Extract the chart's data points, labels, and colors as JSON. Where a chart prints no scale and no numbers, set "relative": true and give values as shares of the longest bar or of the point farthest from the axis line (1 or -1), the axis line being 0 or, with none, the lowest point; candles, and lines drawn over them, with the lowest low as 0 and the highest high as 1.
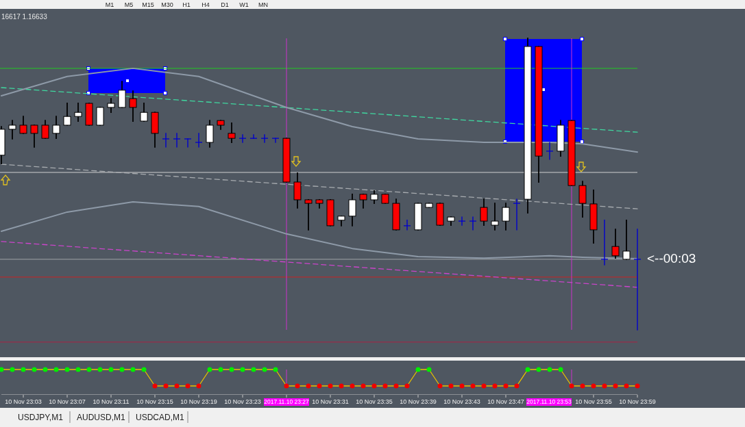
{
  "chart_data": [
    {
      "type": "other",
      "annotations": [
        "M1",
        "M5",
        "M15",
        "M30",
        "H1",
        "H4",
        "D1",
        "W1",
        "MN"
      ]
    },
    {
      "type": "candlestick",
      "relative": true,
      "tick_labels": false,
      "xlim": [
        "2017-11-10T23:01",
        "2017-11-10T23:59"
      ],
      "x": [
        "2017-11-10T23:01",
        "2017-11-10T23:02",
        "2017-11-10T23:03",
        "2017-11-10T23:04",
        "2017-11-10T23:05",
        "2017-11-10T23:06",
        "2017-11-10T23:07",
        "2017-11-10T23:08",
        "2017-11-10T23:09",
        "2017-11-10T23:10",
        "2017-11-10T23:11",
        "2017-11-10T23:12",
        "2017-11-10T23:13",
        "2017-11-10T23:14",
        "2017-11-10T23:15",
        "2017-11-10T23:16",
        "2017-11-10T23:17",
        "2017-11-10T23:18",
        "2017-11-10T23:19",
        "2017-11-10T23:20",
        "2017-11-10T23:21",
        "2017-11-10T23:22",
        "2017-11-10T23:23",
        "2017-11-10T23:24",
        "2017-11-10T23:25",
        "2017-11-10T23:26",
        "2017-11-10T23:27",
        "2017-11-10T23:28",
        "2017-11-10T23:29",
        "2017-11-10T23:30",
        "2017-11-10T23:31",
        "2017-11-10T23:32",
        "2017-11-10T23:33",
        "2017-11-10T23:34",
        "2017-11-10T23:35",
        "2017-11-10T23:36",
        "2017-11-10T23:37",
        "2017-11-10T23:38",
        "2017-11-10T23:39",
        "2017-11-10T23:40",
        "2017-11-10T23:41",
        "2017-11-10T23:42",
        "2017-11-10T23:43",
        "2017-11-10T23:44",
        "2017-11-10T23:45",
        "2017-11-10T23:46",
        "2017-11-10T23:47",
        "2017-11-10T23:48",
        "2017-11-10T23:49",
        "2017-11-10T23:50",
        "2017-11-10T23:51",
        "2017-11-10T23:52",
        "2017-11-10T23:53",
        "2017-11-10T23:54",
        "2017-11-10T23:55",
        "2017-11-10T23:56",
        "2017-11-10T23:57",
        "2017-11-10T23:58",
        "2017-11-10T23:59"
      ],
      "ohlc": [
        [
          0.599,
          0.697,
          0.57,
          0.688
        ],
        [
          0.688,
          0.718,
          0.655,
          0.702
        ],
        [
          0.702,
          0.732,
          0.674,
          0.674
        ],
        [
          0.702,
          0.702,
          0.627,
          0.674
        ],
        [
          0.702,
          0.718,
          0.657,
          0.657
        ],
        [
          0.674,
          0.732,
          0.657,
          0.702
        ],
        [
          0.702,
          0.777,
          0.702,
          0.732
        ],
        [
          0.732,
          0.777,
          0.716,
          0.746
        ],
        [
          0.777,
          0.777,
          0.702,
          0.702
        ],
        [
          0.702,
          0.763,
          0.702,
          0.763
        ],
        [
          0.763,
          0.793,
          0.746,
          0.777
        ],
        [
          0.763,
          0.852,
          0.763,
          0.822
        ],
        [
          0.793,
          0.819,
          0.716,
          0.763
        ],
        [
          0.716,
          0.777,
          0.716,
          0.746
        ],
        [
          0.746,
          0.746,
          0.627,
          0.674
        ],
        [
          0.655,
          0.674,
          0.627,
          0.655
        ],
        [
          0.655,
          0.674,
          0.627,
          0.655
        ],
        [
          0.655,
          0.655,
          0.627,
          0.655
        ],
        [
          0.643,
          0.674,
          0.627,
          0.643
        ],
        [
          0.643,
          0.718,
          0.627,
          0.702
        ],
        [
          0.718,
          0.718,
          0.688,
          0.702
        ],
        [
          0.674,
          0.709,
          0.643,
          0.657
        ],
        [
          0.657,
          0.669,
          0.643,
          0.657
        ],
        [
          0.657,
          0.669,
          0.657,
          0.657
        ],
        [
          0.657,
          0.669,
          0.643,
          0.657
        ],
        [
          0.657,
          0.657,
          0.643,
          0.657
        ],
        [
          0.657,
          0.657,
          0.507,
          0.507
        ],
        [
          0.507,
          0.538,
          0.418,
          0.446
        ],
        [
          0.446,
          0.446,
          0.343,
          0.434
        ],
        [
          0.446,
          0.446,
          0.418,
          0.434
        ],
        [
          0.446,
          0.446,
          0.357,
          0.357
        ],
        [
          0.376,
          0.39,
          0.357,
          0.39
        ],
        [
          0.39,
          0.465,
          0.357,
          0.446
        ],
        [
          0.465,
          0.465,
          0.418,
          0.446
        ],
        [
          0.446,
          0.477,
          0.434,
          0.465
        ],
        [
          0.465,
          0.465,
          0.434,
          0.434
        ],
        [
          0.434,
          0.448,
          0.343,
          0.343
        ],
        [
          0.357,
          0.376,
          0.343,
          0.357
        ],
        [
          0.343,
          0.434,
          0.343,
          0.434
        ],
        [
          0.42,
          0.434,
          0.42,
          0.434
        ],
        [
          0.434,
          0.434,
          0.359,
          0.359
        ],
        [
          0.373,
          0.387,
          0.359,
          0.387
        ],
        [
          0.373,
          0.387,
          0.359,
          0.373
        ],
        [
          0.373,
          0.387,
          0.343,
          0.373
        ],
        [
          0.42,
          0.448,
          0.359,
          0.373
        ],
        [
          0.359,
          0.434,
          0.343,
          0.373
        ],
        [
          0.373,
          0.434,
          0.343,
          0.42
        ],
        [
          0.434,
          0.448,
          0.343,
          0.434
        ],
        [
          0.448,
          1,
          0.401,
          0.972
        ],
        [
          0.972,
          0.972,
          0.507,
          0.596
        ],
        [
          0.613,
          0.643,
          0.585,
          0.613
        ],
        [
          0.613,
          0.718,
          0.596,
          0.702
        ],
        [
          0.718,
          0.718,
          0.495,
          0.495
        ],
        [
          0.495,
          0.509,
          0.387,
          0.434
        ],
        [
          0.432,
          0.479,
          0.298,
          0.343
        ],
        [
          0.242,
          0.376,
          0.223,
          0.242
        ],
        [
          0.286,
          0.345,
          0.246,
          0.254
        ],
        [
          0.242,
          0.376,
          0.242,
          0.27
        ],
        [
          0.242,
          0.345,
          0,
          0.242
        ]
      ],
      "colors": [
        "#ffffff",
        "#ffffff",
        "#ff0000",
        "#ff0000",
        "#ff0000",
        "#ffffff",
        "#ffffff",
        "#ffffff",
        "#ff0000",
        "#ffffff",
        "#ffffff",
        "#ffffff",
        "#ff0000",
        "#ffffff",
        "#ff0000",
        "#0000cc",
        "#0000cc",
        "#0000cc",
        "#0000cc",
        "#ffffff",
        "#ff0000",
        "#ff0000",
        "#0000cc",
        "#0000cc",
        "#0000cc",
        "#0000cc",
        "#ff0000",
        "#ff0000",
        "#ff0000",
        "#ff0000",
        "#ff0000",
        "#ffffff",
        "#ffffff",
        "#ff0000",
        "#ffffff",
        "#ff0000",
        "#ff0000",
        "#0000cc",
        "#ffffff",
        "#ffffff",
        "#ff0000",
        "#ffffff",
        "#0000cc",
        "#0000cc",
        "#ff0000",
        "#ffffff",
        "#ffffff",
        "#0000cc",
        "#ffffff",
        "#ff0000",
        "#0000cc",
        "#ffffff",
        "#ff0000",
        "#ff0000",
        "#ff0000",
        "#0000cc",
        "#ff0000",
        "#ffffff",
        "#0000cc"
      ],
      "series": [
        {
          "type": "line",
          "color": "#3fd9a0",
          "line_style": "dashed",
          "x": [
            "2017-11-10T23:01",
            "2017-11-10T23:59"
          ],
          "values": [
            0.831,
            0.678
          ]
        },
        {
          "type": "line",
          "color": "#a8acb0",
          "line_style": "dashed",
          "x": [
            "2017-11-10T23:01",
            "2017-11-10T23:59"
          ],
          "values": [
            0.568,
            0.415
          ]
        },
        {
          "type": "line",
          "color": "#cc44cc",
          "line_style": "dashed",
          "x": [
            "2017-11-10T23:01",
            "2017-11-10T23:59"
          ],
          "values": [
            0.303,
            0.146
          ]
        },
        {
          "type": "line",
          "color": "#8e9aa8",
          "line_style": "solid",
          "x": [
            "2017-11-10T23:01",
            "2017-11-10T23:07",
            "2017-11-10T23:13",
            "2017-11-10T23:19",
            "2017-11-10T23:27",
            "2017-11-10T23:33",
            "2017-11-10T23:39",
            "2017-11-10T23:45",
            "2017-11-10T23:51",
            "2017-11-10T23:54",
            "2017-11-10T23:59"
          ],
          "values": [
            0.803,
            0.869,
            0.897,
            0.869,
            0.763,
            0.697,
            0.655,
            0.643,
            0.643,
            0.638,
            0.61
          ]
        },
        {
          "type": "line",
          "color": "#8e9aa8",
          "line_style": "solid",
          "x": [
            "2017-11-10T23:01",
            "2017-11-10T23:07",
            "2017-11-10T23:13",
            "2017-11-10T23:19",
            "2017-11-10T23:27",
            "2017-11-10T23:33",
            "2017-11-10T23:39",
            "2017-11-10T23:45",
            "2017-11-10T23:51",
            "2017-11-10T23:54",
            "2017-11-10T23:59"
          ],
          "values": [
            0.338,
            0.404,
            0.439,
            0.423,
            0.329,
            0.279,
            0.251,
            0.246,
            0.254,
            0.249,
            0.244
          ]
        }
      ],
      "ref_lines": [
        {
          "axis": "y",
          "value": 0.897,
          "color": "#22cc22"
        },
        {
          "axis": "y",
          "value": 0.54,
          "color": "#d0d0d0"
        },
        {
          "axis": "y",
          "value": 0.242,
          "color": "#a0a4a8"
        },
        {
          "axis": "y",
          "value": 0.181,
          "color": "#cc2222"
        },
        {
          "axis": "y",
          "value": -0.042,
          "color": "#aa2244"
        },
        {
          "axis": "x",
          "value": "2017-11-10T23:27",
          "color": "#cc33cc"
        },
        {
          "axis": "x",
          "value": "2017-11-10T23:53",
          "color": "#cc33cc"
        }
      ],
      "annotations": [
        "16617 1.16633",
        {
          "text": "<--00:03",
          "x": "2017-11-10T23:59",
          "y": 0.242
        }
      ]
    },
    {
      "type": "line",
      "relative": true,
      "tick_labels": "x",
      "marker": "circle",
      "xlim": [
        "2017-11-10T23:01",
        "2017-11-10T23:59"
      ],
      "x": [
        "2017-11-10T23:01",
        "2017-11-10T23:02",
        "2017-11-10T23:03",
        "2017-11-10T23:04",
        "2017-11-10T23:05",
        "2017-11-10T23:06",
        "2017-11-10T23:07",
        "2017-11-10T23:08",
        "2017-11-10T23:09",
        "2017-11-10T23:10",
        "2017-11-10T23:11",
        "2017-11-10T23:12",
        "2017-11-10T23:13",
        "2017-11-10T23:14",
        "2017-11-10T23:15",
        "2017-11-10T23:16",
        "2017-11-10T23:17",
        "2017-11-10T23:18",
        "2017-11-10T23:19",
        "2017-11-10T23:20",
        "2017-11-10T23:21",
        "2017-11-10T23:22",
        "2017-11-10T23:23",
        "2017-11-10T23:24",
        "2017-11-10T23:25",
        "2017-11-10T23:26",
        "2017-11-10T23:27",
        "2017-11-10T23:28",
        "2017-11-10T23:29",
        "2017-11-10T23:30",
        "2017-11-10T23:31",
        "2017-11-10T23:32",
        "2017-11-10T23:33",
        "2017-11-10T23:34",
        "2017-11-10T23:35",
        "2017-11-10T23:36",
        "2017-11-10T23:37",
        "2017-11-10T23:38",
        "2017-11-10T23:39",
        "2017-11-10T23:40",
        "2017-11-10T23:41",
        "2017-11-10T23:42",
        "2017-11-10T23:43",
        "2017-11-10T23:44",
        "2017-11-10T23:45",
        "2017-11-10T23:46",
        "2017-11-10T23:47",
        "2017-11-10T23:48",
        "2017-11-10T23:49",
        "2017-11-10T23:50",
        "2017-11-10T23:51",
        "2017-11-10T23:52",
        "2017-11-10T23:53",
        "2017-11-10T23:54",
        "2017-11-10T23:55",
        "2017-11-10T23:56",
        "2017-11-10T23:57",
        "2017-11-10T23:58",
        "2017-11-10T23:59"
      ],
      "series": [
        {
          "color": "#e8c000",
          "values": [
            1,
            1,
            1,
            1,
            1,
            1,
            1,
            1,
            1,
            1,
            1,
            1,
            1,
            1,
            0,
            0,
            0,
            0,
            0,
            1,
            1,
            1,
            1,
            1,
            1,
            1,
            0,
            0,
            0,
            0,
            0,
            0,
            0,
            0,
            0,
            0,
            0,
            0,
            1,
            1,
            0,
            0,
            0,
            0,
            0,
            0,
            0,
            0,
            1,
            1,
            1,
            1,
            0,
            0,
            0,
            0,
            0,
            0,
            0
          ],
          "colors": [
            "#00ee00",
            "#00ee00",
            "#00ee00",
            "#00ee00",
            "#00ee00",
            "#00ee00",
            "#00ee00",
            "#00ee00",
            "#00ee00",
            "#00ee00",
            "#00ee00",
            "#00ee00",
            "#00ee00",
            "#00ee00",
            "#ee0000",
            "#ee0000",
            "#ee0000",
            "#ee0000",
            "#ee0000",
            "#00ee00",
            "#00ee00",
            "#00ee00",
            "#00ee00",
            "#00ee00",
            "#00ee00",
            "#00ee00",
            "#ee0000",
            "#ee0000",
            "#ee0000",
            "#ee0000",
            "#ee0000",
            "#ee0000",
            "#ee0000",
            "#ee0000",
            "#ee0000",
            "#ee0000",
            "#ee0000",
            "#ee0000",
            "#00ee00",
            "#00ee00",
            "#ee0000",
            "#ee0000",
            "#ee0000",
            "#ee0000",
            "#ee0000",
            "#ee0000",
            "#ee0000",
            "#ee0000",
            "#00ee00",
            "#00ee00",
            "#00ee00",
            "#00ee00",
            "#ee0000",
            "#ee0000",
            "#ee0000",
            "#ee0000",
            "#ee0000",
            "#ee0000",
            "#ee0000"
          ]
        }
      ],
      "xticks": [
        {
          "value": "2017-11-10T23:03",
          "label": "10 Nov 23:03"
        },
        {
          "value": "2017-11-10T23:07",
          "label": "10 Nov 23:07"
        },
        {
          "value": "2017-11-10T23:11",
          "label": "10 Nov 23:11"
        },
        {
          "value": "2017-11-10T23:15",
          "label": "10 Nov 23:15"
        },
        {
          "value": "2017-11-10T23:19",
          "label": "10 Nov 23:19"
        },
        {
          "value": "2017-11-10T23:23",
          "label": "10 Nov 23:23"
        },
        {
          "value": "2017-11-10T23:27",
          "label": null
        },
        {
          "value": "2017-11-10T23:31",
          "label": "10 Nov 23:31"
        },
        {
          "value": "2017-11-10T23:35",
          "label": "10 Nov 23:35"
        },
        {
          "value": "2017-11-10T23:39",
          "label": "10 Nov 23:39"
        },
        {
          "value": "2017-11-10T23:43",
          "label": "10 Nov 23:43"
        },
        {
          "value": "2017-11-10T23:47",
          "label": "10 Nov 23:47"
        },
        {
          "value": "2017-11-10T23:55",
          "label": "10 Nov 23:55"
        },
        {
          "value": "2017-11-10T23:59",
          "label": "10 Nov 23:59"
        }
      ],
      "ref_lines": [
        {
          "axis": "x",
          "value": "2017-11-10T23:27",
          "label": "2017.11.10 23:27",
          "color": "#cc33cc"
        },
        {
          "axis": "x",
          "value": "2017-11-10T23:53",
          "label": "2017.11.10 23:53",
          "color": "#cc33cc"
        }
      ]
    },
    {
      "type": "other",
      "annotations": [
        "USDJPY,M1",
        "AUDUSD,M1",
        "USDCAD,M1"
      ]
    }
  ]
}
